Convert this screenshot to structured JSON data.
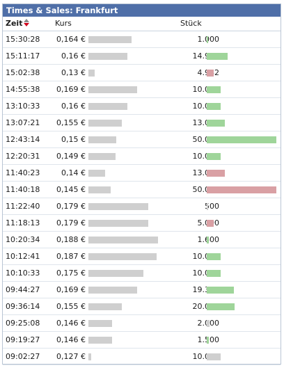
{
  "title": "Times & Sales: Frankfurt",
  "columns": {
    "time": "Zeit",
    "price": "Kurs",
    "volume": "Stück"
  },
  "sort_icon": "sort-up-down-icon",
  "colors": {
    "titlebar": "#4f6fa8",
    "buy": "#9fd59a",
    "sell": "#d9a0a4",
    "neutral": "#cfcfcf"
  },
  "rows": [
    {
      "time": "15:30:28",
      "price": "0,164 €",
      "price_level": 0.6,
      "volume": "1.000",
      "volume_level": 0.02,
      "side": "buy"
    },
    {
      "time": "15:11:17",
      "price": "0,16 €",
      "price_level": 0.54,
      "volume": "14.982",
      "volume_level": 0.3,
      "side": "buy"
    },
    {
      "time": "15:02:38",
      "price": "0,13 €",
      "price_level": 0.05,
      "volume": "4.982",
      "volume_level": 0.1,
      "side": "sell"
    },
    {
      "time": "14:55:38",
      "price": "0,169 €",
      "price_level": 0.69,
      "volume": "10.000",
      "volume_level": 0.2,
      "side": "buy"
    },
    {
      "time": "13:10:33",
      "price": "0,16 €",
      "price_level": 0.54,
      "volume": "10.000",
      "volume_level": 0.2,
      "side": "buy"
    },
    {
      "time": "13:07:21",
      "price": "0,155 €",
      "price_level": 0.46,
      "volume": "13.000",
      "volume_level": 0.26,
      "side": "buy"
    },
    {
      "time": "12:43:14",
      "price": "0,15 €",
      "price_level": 0.37,
      "volume": "50.000",
      "volume_level": 1.0,
      "side": "buy"
    },
    {
      "time": "12:20:31",
      "price": "0,149 €",
      "price_level": 0.36,
      "volume": "10.000",
      "volume_level": 0.2,
      "side": "buy"
    },
    {
      "time": "11:40:23",
      "price": "0,14 €",
      "price_level": 0.21,
      "volume": "13.000",
      "volume_level": 0.26,
      "side": "sell"
    },
    {
      "time": "11:40:18",
      "price": "0,145 €",
      "price_level": 0.29,
      "volume": "50.000",
      "volume_level": 1.0,
      "side": "sell"
    },
    {
      "time": "11:22:40",
      "price": "0,179 €",
      "price_level": 0.85,
      "volume": "500",
      "volume_level": 0.01,
      "side": "neutral"
    },
    {
      "time": "11:18:13",
      "price": "0,179 €",
      "price_level": 0.85,
      "volume": "5.000",
      "volume_level": 0.1,
      "side": "sell"
    },
    {
      "time": "10:20:34",
      "price": "0,188 €",
      "price_level": 1.0,
      "volume": "1.600",
      "volume_level": 0.03,
      "side": "buy"
    },
    {
      "time": "10:12:41",
      "price": "0,187 €",
      "price_level": 0.98,
      "volume": "10.000",
      "volume_level": 0.2,
      "side": "buy"
    },
    {
      "time": "10:10:33",
      "price": "0,175 €",
      "price_level": 0.78,
      "volume": "10.000",
      "volume_level": 0.2,
      "side": "buy"
    },
    {
      "time": "09:44:27",
      "price": "0,169 €",
      "price_level": 0.69,
      "volume": "19.344",
      "volume_level": 0.39,
      "side": "buy"
    },
    {
      "time": "09:36:14",
      "price": "0,155 €",
      "price_level": 0.46,
      "volume": "20.000",
      "volume_level": 0.4,
      "side": "buy"
    },
    {
      "time": "09:25:08",
      "price": "0,146 €",
      "price_level": 0.31,
      "volume": "2.000",
      "volume_level": 0.04,
      "side": "neutral"
    },
    {
      "time": "09:19:27",
      "price": "0,146 €",
      "price_level": 0.31,
      "volume": "1.500",
      "volume_level": 0.03,
      "side": "buy"
    },
    {
      "time": "09:02:27",
      "price": "0,127 €",
      "price_level": 0.0,
      "volume": "10.000",
      "volume_level": 0.2,
      "side": "neutral"
    }
  ]
}
